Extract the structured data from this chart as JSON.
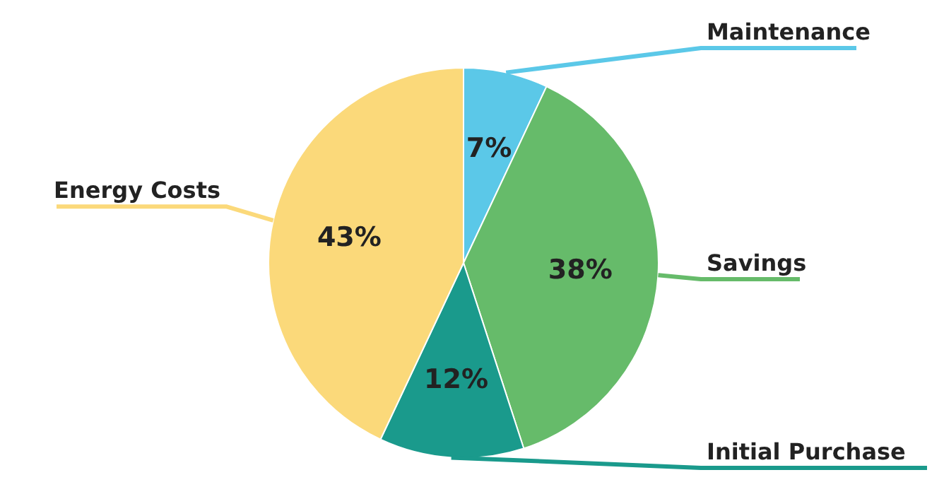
{
  "chart_data": {
    "type": "pie",
    "categories": [
      "Maintenance",
      "Savings",
      "Initial Purchase",
      "Energy Costs"
    ],
    "values": [
      7,
      38,
      12,
      43
    ],
    "colors": [
      "#5bc8e8",
      "#66bb6a",
      "#1a9a8c",
      "#fbd97a"
    ],
    "value_labels": [
      "7%",
      "38%",
      "12%",
      "43%"
    ]
  }
}
